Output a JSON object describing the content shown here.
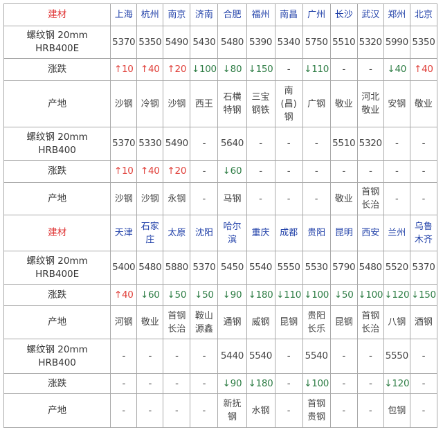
{
  "sections": [
    {
      "header_label": "建材",
      "cities": [
        "上海",
        "杭州",
        "南京",
        "济南",
        "合肥",
        "福州",
        "南昌",
        "广州",
        "长沙",
        "武汉",
        "郑州",
        "北京"
      ],
      "rows": [
        {
          "label": "螺纹钢 20mm\nHRB400E",
          "kind": "price",
          "values": [
            "5370",
            "5350",
            "5490",
            "5430",
            "5480",
            "5390",
            "5340",
            "5750",
            "5510",
            "5320",
            "5990",
            "5350"
          ]
        },
        {
          "label": "涨跌",
          "kind": "change",
          "values": [
            "↑10",
            "↑40",
            "↑20",
            "↓100",
            "↓80",
            "↓150",
            "-",
            "↓110",
            "-",
            "-",
            "↓40",
            "↑40"
          ]
        },
        {
          "label": "产地",
          "kind": "origin",
          "values": [
            "沙钢",
            "冷钢",
            "沙钢",
            "西王",
            "石横\n特钢",
            "三宝\n钢铁",
            "南\n(昌)\n钢",
            "广钢",
            "敬业",
            "河北\n敬业",
            "安钢",
            "敬业"
          ]
        },
        {
          "label": "螺纹钢 20mm\nHRB400",
          "kind": "price",
          "values": [
            "5370",
            "5330",
            "5490",
            "-",
            "5640",
            "-",
            "-",
            "-",
            "5510",
            "5320",
            "-",
            "-"
          ]
        },
        {
          "label": "涨跌",
          "kind": "change",
          "values": [
            "↑10",
            "↑40",
            "↑20",
            "-",
            "↓60",
            "-",
            "-",
            "-",
            "-",
            "-",
            "-",
            "-"
          ]
        },
        {
          "label": "产地",
          "kind": "origin",
          "values": [
            "沙钢",
            "沙钢",
            "永钢",
            "-",
            "马钢",
            "-",
            "-",
            "-",
            "敬业",
            "首钢\n长治",
            "-",
            "-"
          ]
        }
      ]
    },
    {
      "header_label": "建材",
      "cities": [
        "天津",
        "石家\n庄",
        "太原",
        "沈阳",
        "哈尔\n滨",
        "重庆",
        "成都",
        "贵阳",
        "昆明",
        "西安",
        "兰州",
        "乌鲁\n木齐"
      ],
      "rows": [
        {
          "label": "螺纹钢 20mm\nHRB400E",
          "kind": "price",
          "values": [
            "5400",
            "5480",
            "5880",
            "5370",
            "5450",
            "5540",
            "5550",
            "5530",
            "5790",
            "5480",
            "5520",
            "5370"
          ]
        },
        {
          "label": "涨跌",
          "kind": "change",
          "values": [
            "↑40",
            "↓60",
            "↓50",
            "↓50",
            "↓90",
            "↓180",
            "↓110",
            "↓100",
            "↓50",
            "↓100",
            "↓120",
            "↓150"
          ]
        },
        {
          "label": "产地",
          "kind": "origin",
          "values": [
            "河钢",
            "敬业",
            "首钢\n长治",
            "鞍山\n源鑫",
            "通钢",
            "威钢",
            "昆钢",
            "贵阳\n长乐",
            "昆钢",
            "首钢\n长治",
            "八钢",
            "酒钢"
          ]
        },
        {
          "label": "螺纹钢 20mm\nHRB400",
          "kind": "price",
          "values": [
            "-",
            "-",
            "-",
            "-",
            "5440",
            "5540",
            "-",
            "5540",
            "-",
            "-",
            "5550",
            "-"
          ]
        },
        {
          "label": "涨跌",
          "kind": "change",
          "values": [
            "-",
            "-",
            "-",
            "-",
            "↓90",
            "↓180",
            "-",
            "↓100",
            "-",
            "-",
            "↓120",
            "-"
          ]
        },
        {
          "label": "产地",
          "kind": "origin",
          "values": [
            "-",
            "-",
            "-",
            "-",
            "新抚\n钢",
            "水钢",
            "-",
            "首钢\n贵钢",
            "-",
            "-",
            "包钢",
            "-"
          ]
        }
      ]
    }
  ],
  "colors": {
    "header_label": "#e03a3a",
    "city": "#1f3fa8",
    "up": "#e0403a",
    "down": "#2e7d45"
  }
}
